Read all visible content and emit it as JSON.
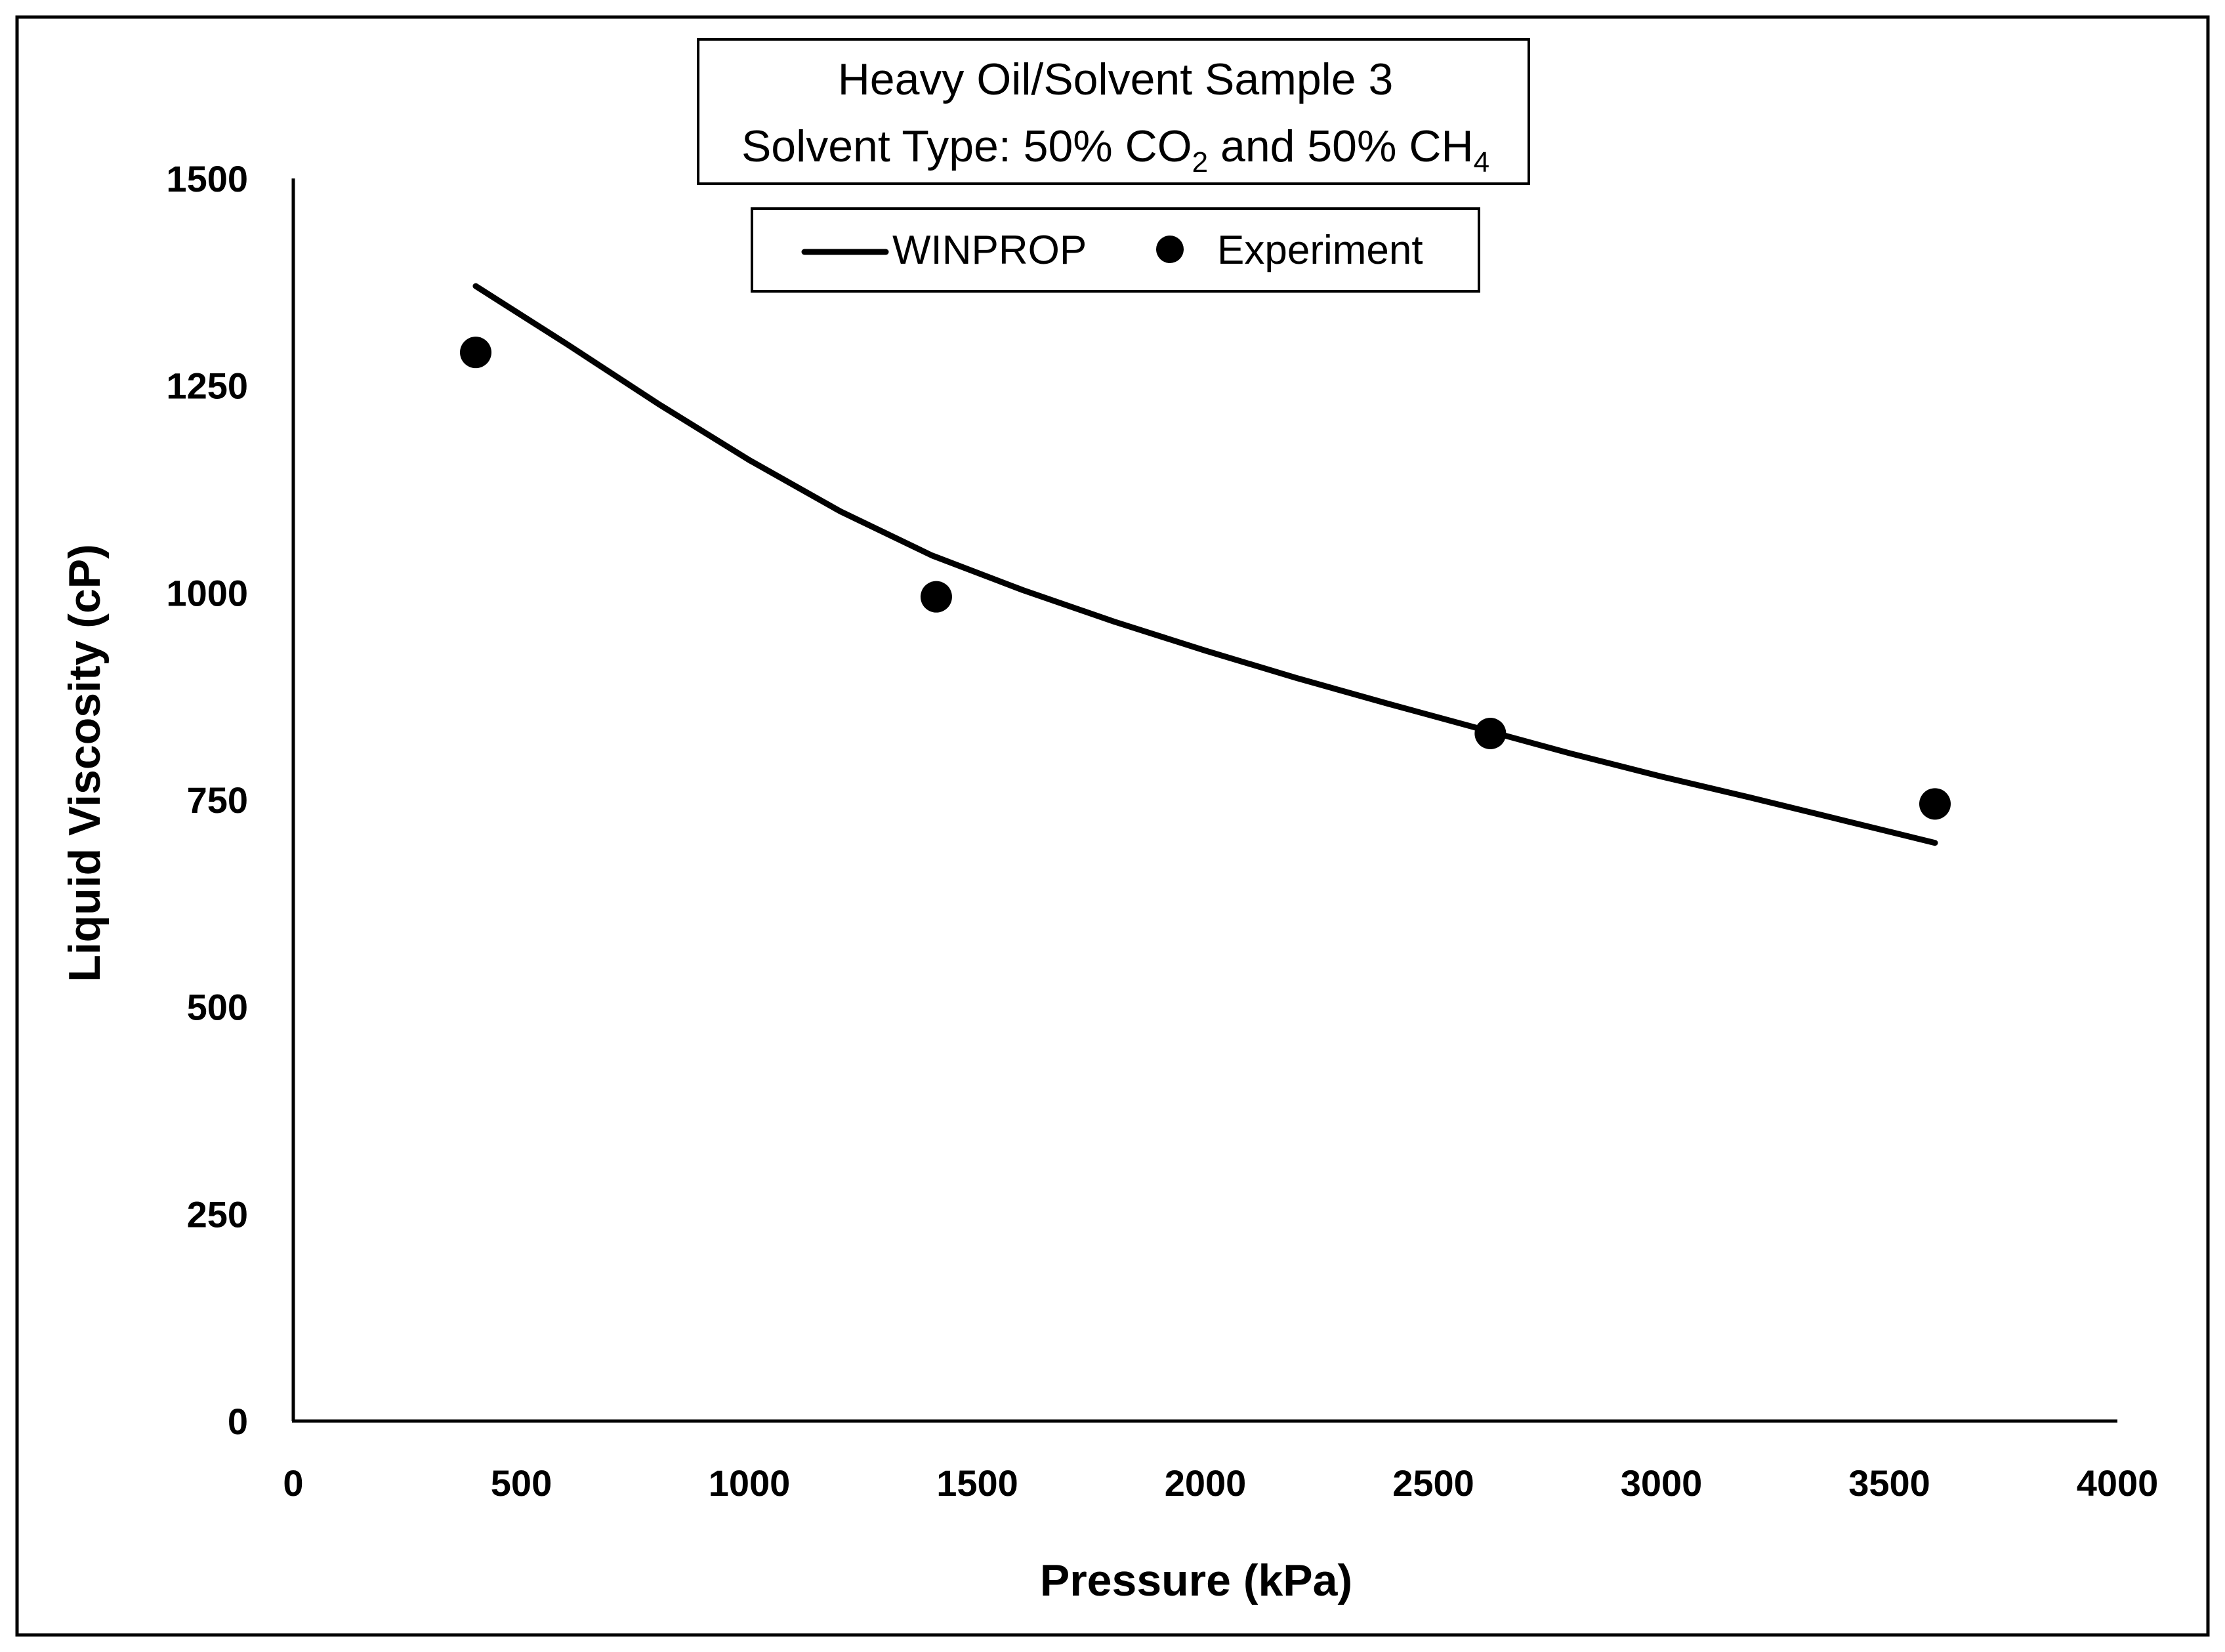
{
  "chart_data": {
    "type": "line",
    "title": {
      "line1": "Heavy Oil/Solvent Sample 3",
      "line2_prefix": "Solvent Type: 50% CO",
      "line2_sub1": "2",
      "line2_mid": " and 50% CH",
      "line2_sub2": "4"
    },
    "xlabel": "Pressure (kPa)",
    "ylabel": "Liquid Viscosity (cP)",
    "xlim": [
      0,
      4000
    ],
    "ylim": [
      0,
      1500
    ],
    "xticks": [
      0,
      500,
      1000,
      1500,
      2000,
      2500,
      3000,
      3500,
      4000
    ],
    "yticks": [
      0,
      250,
      500,
      750,
      1000,
      1250,
      1500
    ],
    "grid": false,
    "legend_position": "top-center",
    "series": [
      {
        "name": "WINPROP",
        "kind": "line",
        "color": "#000000",
        "x": [
          400,
          600,
          800,
          1000,
          1200,
          1400,
          1600,
          1800,
          2000,
          2200,
          2400,
          2600,
          2800,
          3000,
          3200,
          3400,
          3600
        ],
        "y": [
          1370,
          1300,
          1228,
          1160,
          1098,
          1045,
          1003,
          965,
          930,
          897,
          866,
          836,
          806,
          778,
          752,
          725,
          698
        ]
      },
      {
        "name": "Experiment",
        "kind": "scatter",
        "color": "#000000",
        "x": [
          400,
          1410,
          2625,
          3600
        ],
        "y": [
          1290,
          995,
          830,
          745
        ]
      }
    ]
  }
}
